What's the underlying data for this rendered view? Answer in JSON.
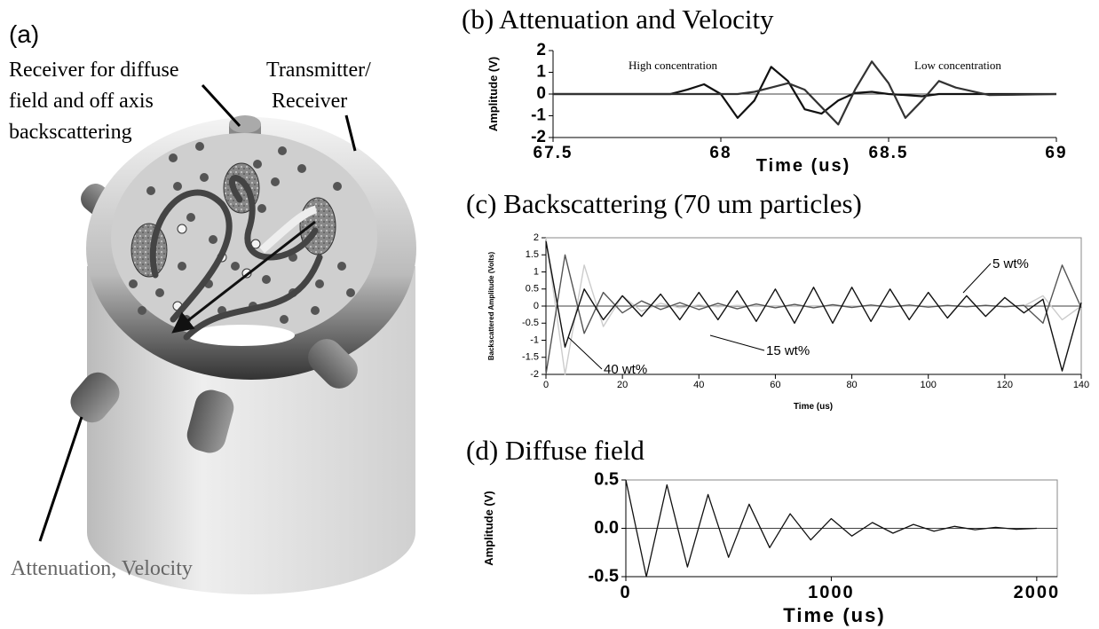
{
  "panel_a": {
    "label": "(a)",
    "receiver_lines": [
      "Receiver for diffuse",
      "field and off axis",
      "backscattering"
    ],
    "transmitter_lines": [
      "Transmitter/",
      "Receiver"
    ],
    "attenuation": "Attenuation, Velocity"
  },
  "chart_data": [
    {
      "type": "line",
      "title": "(b) Attenuation and Velocity",
      "x_label": "Time (us)",
      "y_label": "Amplitude (V)",
      "annotations": [
        "High concentration",
        "Low concentration"
      ],
      "x": [
        67.5,
        67.85,
        67.9,
        67.95,
        68.0,
        68.05,
        68.1,
        68.15,
        68.2,
        68.25,
        68.3,
        68.35,
        68.4,
        68.45,
        68.5,
        68.55,
        68.6,
        68.65,
        68.7,
        68.8,
        69.0
      ],
      "series": [
        {
          "color": "#111111",
          "values": [
            0,
            0,
            0.2,
            0.45,
            0,
            -1.1,
            -0.3,
            1.25,
            0.6,
            -0.7,
            -0.9,
            -0.3,
            0.05,
            0.1,
            0,
            -0.05,
            -0.1,
            0,
            0,
            0,
            0
          ]
        },
        {
          "color": "#333333",
          "values": [
            0,
            0,
            0,
            0,
            0,
            0,
            0.1,
            0.3,
            0.5,
            0.2,
            -0.6,
            -1.4,
            0.2,
            1.5,
            0.5,
            -1.1,
            -0.3,
            0.6,
            0.3,
            -0.05,
            0
          ]
        }
      ],
      "xlim": [
        67.5,
        69
      ],
      "xticks": [
        67.5,
        68,
        68.5,
        69
      ],
      "ylim": [
        -2,
        2
      ],
      "yticks": [
        -2,
        -1,
        0,
        1,
        2
      ]
    },
    {
      "type": "line",
      "title": "(c) Backscattering (70 um particles)",
      "x_label": "Time (us)",
      "y_label": "Backscattered Amplitude (Volts)",
      "x": [
        0,
        5,
        10,
        15,
        20,
        25,
        30,
        35,
        40,
        45,
        50,
        55,
        60,
        65,
        70,
        75,
        80,
        85,
        90,
        95,
        100,
        105,
        110,
        115,
        120,
        125,
        130,
        135,
        140
      ],
      "series": [
        {
          "name": "40 wt%",
          "color": "#cccccc",
          "values": [
            2,
            -2,
            1.2,
            -0.6,
            0.3,
            -0.15,
            0.08,
            -0.05,
            0.03,
            -0.02,
            0.02,
            -0.01,
            0.01,
            -0.01,
            0.01,
            0,
            0,
            0,
            0,
            0,
            0,
            0,
            0,
            0,
            0,
            0,
            0.3,
            -0.4,
            0
          ]
        },
        {
          "name": "15 wt%",
          "color": "#555555",
          "values": [
            -2,
            1.5,
            -0.8,
            0.4,
            -0.2,
            0.15,
            -0.1,
            0.1,
            -0.1,
            0.08,
            -0.08,
            0.06,
            -0.05,
            0.05,
            -0.05,
            0.04,
            -0.04,
            0.03,
            -0.03,
            0.03,
            -0.03,
            0.02,
            -0.02,
            0.02,
            -0.02,
            0.02,
            -0.5,
            1.2,
            -0.05
          ]
        },
        {
          "name": "5 wt%",
          "color": "#111111",
          "values": [
            1.9,
            -1.2,
            0.5,
            -0.4,
            0.3,
            -0.3,
            0.35,
            -0.4,
            0.4,
            -0.4,
            0.45,
            -0.45,
            0.5,
            -0.5,
            0.55,
            -0.5,
            0.55,
            -0.45,
            0.5,
            -0.4,
            0.4,
            -0.35,
            0.3,
            -0.3,
            0.25,
            -0.2,
            0.2,
            -1.9,
            0.1
          ]
        }
      ],
      "xlim": [
        0,
        140
      ],
      "xticks": [
        0,
        20,
        40,
        60,
        80,
        100,
        120,
        140
      ],
      "ylim": [
        -2,
        2
      ],
      "yticks": [
        -2,
        -1.5,
        -1,
        -0.5,
        0,
        0.5,
        1,
        1.5,
        2
      ]
    },
    {
      "type": "line",
      "title": "(d) Diffuse field",
      "x_label": "Time (us)",
      "y_label": "Amplitude (V)",
      "x": [
        0,
        100,
        200,
        300,
        400,
        500,
        600,
        700,
        800,
        900,
        1000,
        1100,
        1200,
        1300,
        1400,
        1500,
        1600,
        1700,
        1800,
        1900,
        2000
      ],
      "series": [
        {
          "color": "#111111",
          "values": [
            0.5,
            -0.5,
            0.45,
            -0.4,
            0.35,
            -0.3,
            0.25,
            -0.2,
            0.15,
            -0.12,
            0.1,
            -0.08,
            0.06,
            -0.05,
            0.04,
            -0.03,
            0.02,
            -0.015,
            0.01,
            -0.01,
            0
          ]
        }
      ],
      "xlim": [
        0,
        2100
      ],
      "xticks": [
        0,
        1000,
        2000
      ],
      "ylim": [
        -0.5,
        0.5
      ],
      "yticks": [
        -0.5,
        {
          "value": 0,
          "label": "0.0"
        },
        0.5
      ]
    }
  ]
}
